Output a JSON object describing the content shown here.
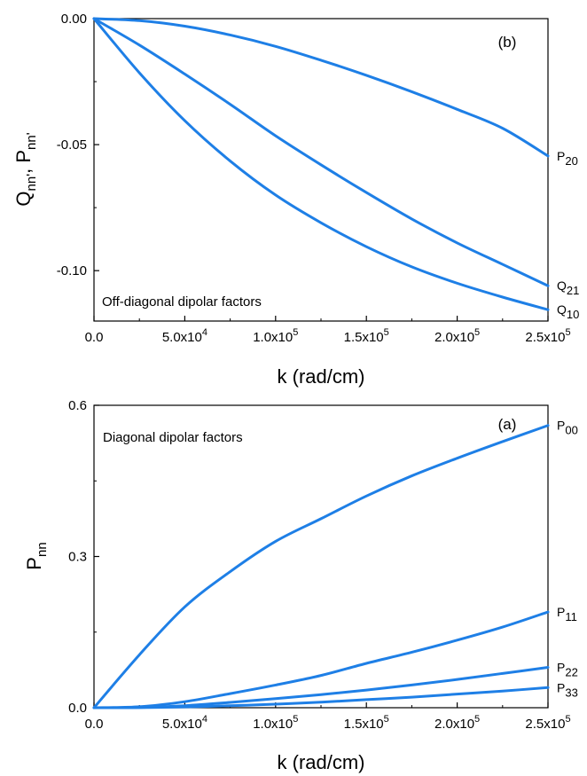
{
  "chart_data": [
    {
      "panel": "(b)",
      "type": "line",
      "annotation": "Off-diagonal dipolar factors",
      "xlabel": "k (rad/cm)",
      "ylabel": "Q_nn', P_nn'",
      "ylabel_parts": {
        "main1": "Q",
        "sub1": "nn'",
        "sep": ", ",
        "main2": "P",
        "sub2": "nn'"
      },
      "xlim": [
        0,
        250000
      ],
      "ylim": [
        -0.12,
        0.0
      ],
      "xticks": [
        {
          "value": 0,
          "mant": "0.0",
          "exp": ""
        },
        {
          "value": 50000,
          "mant": "5.0x10",
          "exp": "4"
        },
        {
          "value": 100000,
          "mant": "1.0x10",
          "exp": "5"
        },
        {
          "value": 150000,
          "mant": "1.5x10",
          "exp": "5"
        },
        {
          "value": 200000,
          "mant": "2.0x10",
          "exp": "5"
        },
        {
          "value": 250000,
          "mant": "2.5x10",
          "exp": "5"
        }
      ],
      "yticks": [
        {
          "value": 0.0,
          "label": "0.00"
        },
        {
          "value": -0.05,
          "label": "-0.05"
        },
        {
          "value": -0.1,
          "label": "-0.10"
        }
      ],
      "x": [
        0,
        25000,
        50000,
        75000,
        100000,
        125000,
        150000,
        175000,
        200000,
        225000,
        250000
      ],
      "series": [
        {
          "name": "P20",
          "main": "P",
          "sub": "20",
          "values": [
            0.0,
            -0.0008,
            -0.003,
            -0.0065,
            -0.011,
            -0.0165,
            -0.0225,
            -0.029,
            -0.036,
            -0.0435,
            -0.0545
          ]
        },
        {
          "name": "Q21",
          "main": "Q",
          "sub": "21",
          "values": [
            0.0,
            -0.0105,
            -0.022,
            -0.034,
            -0.0465,
            -0.058,
            -0.069,
            -0.0795,
            -0.089,
            -0.0975,
            -0.106
          ]
        },
        {
          "name": "Q10",
          "main": "Q",
          "sub": "10",
          "values": [
            0.0,
            -0.0215,
            -0.0405,
            -0.0565,
            -0.07,
            -0.081,
            -0.0905,
            -0.0985,
            -0.105,
            -0.1105,
            -0.1155
          ]
        }
      ],
      "line_color": "#1e7fe6"
    },
    {
      "panel": "(a)",
      "type": "line",
      "annotation": "Diagonal dipolar factors",
      "xlabel": "k (rad/cm)",
      "ylabel": "P_nn",
      "ylabel_parts": {
        "main1": "P",
        "sub1": "nn"
      },
      "xlim": [
        0,
        250000
      ],
      "ylim": [
        0.0,
        0.6
      ],
      "xticks": [
        {
          "value": 0,
          "mant": "0.0",
          "exp": ""
        },
        {
          "value": 50000,
          "mant": "5.0x10",
          "exp": "4"
        },
        {
          "value": 100000,
          "mant": "1.0x10",
          "exp": "5"
        },
        {
          "value": 150000,
          "mant": "1.5x10",
          "exp": "5"
        },
        {
          "value": 200000,
          "mant": "2.0x10",
          "exp": "5"
        },
        {
          "value": 250000,
          "mant": "2.5x10",
          "exp": "5"
        }
      ],
      "yticks": [
        {
          "value": 0.0,
          "label": "0.0"
        },
        {
          "value": 0.3,
          "label": "0.3"
        },
        {
          "value": 0.6,
          "label": "0.6"
        }
      ],
      "x": [
        0,
        25000,
        50000,
        75000,
        100000,
        125000,
        150000,
        175000,
        200000,
        225000,
        250000
      ],
      "series": [
        {
          "name": "P00",
          "main": "P",
          "sub": "00",
          "values": [
            0.0,
            0.105,
            0.2,
            0.27,
            0.33,
            0.375,
            0.42,
            0.46,
            0.495,
            0.528,
            0.56
          ]
        },
        {
          "name": "P11",
          "main": "P",
          "sub": "11",
          "values": [
            0.0,
            0.002,
            0.012,
            0.028,
            0.045,
            0.064,
            0.088,
            0.11,
            0.134,
            0.16,
            0.19
          ]
        },
        {
          "name": "P22",
          "main": "P",
          "sub": "22",
          "values": [
            0.0,
            0.0005,
            0.004,
            0.0105,
            0.018,
            0.026,
            0.035,
            0.045,
            0.056,
            0.068,
            0.08
          ]
        },
        {
          "name": "P33",
          "main": "P",
          "sub": "33",
          "values": [
            0.0,
            0.0002,
            0.0015,
            0.004,
            0.007,
            0.011,
            0.016,
            0.021,
            0.027,
            0.033,
            0.04
          ]
        }
      ],
      "line_color": "#1e7fe6"
    }
  ]
}
